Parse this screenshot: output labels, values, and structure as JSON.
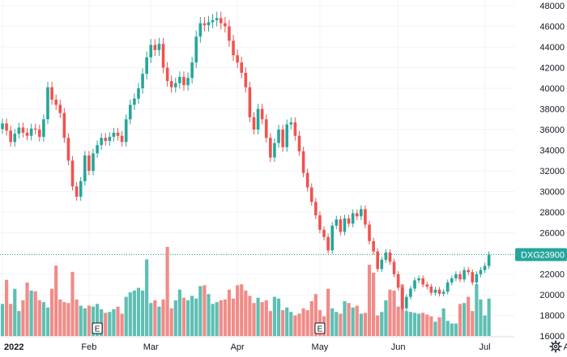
{
  "chart_data": {
    "type": "candlestick",
    "symbol": "DXG",
    "last_price": "23900",
    "last_price_value": 23900,
    "colors": {
      "up": "#26a69a",
      "down": "#ef5350",
      "vol_up": "#5fbfb3",
      "vol_down": "#f08c88",
      "badge": "#26a69a",
      "grid": "#f0f3fa",
      "axis_text": "#131722"
    },
    "ylim": [
      15000,
      48000
    ],
    "y_ticks": [
      16000,
      18000,
      20000,
      22000,
      24000,
      26000,
      28000,
      30000,
      32000,
      34000,
      36000,
      38000,
      40000,
      42000,
      44000,
      46000,
      48000
    ],
    "x_labels": [
      {
        "label": "2022",
        "bar": 0
      },
      {
        "label": "Feb",
        "bar": 21
      },
      {
        "label": "Mar",
        "bar": 36
      },
      {
        "label": "Apr",
        "bar": 57
      },
      {
        "label": "May",
        "bar": 77
      },
      {
        "label": "Jun",
        "bar": 96
      },
      {
        "label": "Jul",
        "bar": 117
      },
      {
        "label": "Aug",
        "bar": 138
      }
    ],
    "earnings_markers": [
      {
        "label": "E",
        "bar": 23
      },
      {
        "label": "E",
        "bar": 77
      }
    ],
    "close": [
      36600,
      35900,
      34800,
      35600,
      36200,
      35700,
      35400,
      36100,
      36000,
      35300,
      37000,
      40100,
      38900,
      38400,
      37600,
      35200,
      33000,
      30500,
      29500,
      31000,
      33500,
      32000,
      33700,
      34500,
      35200,
      34900,
      35300,
      35700,
      35400,
      34800,
      37000,
      38400,
      39000,
      40000,
      41400,
      43000,
      44200,
      43700,
      44300,
      42000,
      40700,
      40100,
      40500,
      41100,
      40300,
      41000,
      42500,
      45000,
      46300,
      46100,
      46400,
      46600,
      46800,
      46300,
      46000,
      44600,
      43200,
      42500,
      41500,
      40100,
      37200,
      36000,
      38000,
      37000,
      35200,
      33300,
      34700,
      36000,
      34300,
      36500,
      36700,
      35400,
      33900,
      31800,
      30400,
      29000,
      27700,
      26300,
      25600,
      24300,
      26700,
      27300,
      26100,
      27400,
      26900,
      27900,
      27600,
      28300,
      26800,
      25200,
      24200,
      22500,
      23400,
      24100,
      23200,
      22000,
      20700,
      18700,
      19800,
      20600,
      21400,
      21600,
      21000,
      20800,
      20200,
      20500,
      20100,
      20300,
      21200,
      21600,
      22000,
      21500,
      22400,
      22200,
      21200,
      22000,
      22400,
      22800,
      23900
    ],
    "volume": [
      0.36,
      0.63,
      0.36,
      0.53,
      0.28,
      0.4,
      0.6,
      0.51,
      0.5,
      0.4,
      0.38,
      0.32,
      0.53,
      0.79,
      0.41,
      0.38,
      0.37,
      0.72,
      0.41,
      0.34,
      0.31,
      0.34,
      0.33,
      0.36,
      0.3,
      0.26,
      0.27,
      0.3,
      0.33,
      0.25,
      0.44,
      0.49,
      0.51,
      0.54,
      0.51,
      0.86,
      0.37,
      0.4,
      0.33,
      0.41,
      1.0,
      0.31,
      0.4,
      0.52,
      0.43,
      0.4,
      0.45,
      0.42,
      0.56,
      0.57,
      0.47,
      0.36,
      0.38,
      0.4,
      0.41,
      0.52,
      0.42,
      0.57,
      0.58,
      0.51,
      0.45,
      0.37,
      0.43,
      0.38,
      0.4,
      0.28,
      0.44,
      0.42,
      0.29,
      0.32,
      0.27,
      0.23,
      0.25,
      0.31,
      0.29,
      0.39,
      0.47,
      0.29,
      0.22,
      0.53,
      0.31,
      0.27,
      0.25,
      0.39,
      0.37,
      0.32,
      0.34,
      0.25,
      0.26,
      0.8,
      0.71,
      0.23,
      0.27,
      0.4,
      0.52,
      0.51,
      0.33,
      0.58,
      0.28,
      0.27,
      0.26,
      0.25,
      0.26,
      0.24,
      0.22,
      0.16,
      0.21,
      0.31,
      0.17,
      0.14,
      0.14,
      0.36,
      0.37,
      0.44,
      0.28,
      0.58,
      0.41,
      0.23,
      0.42
    ]
  }
}
